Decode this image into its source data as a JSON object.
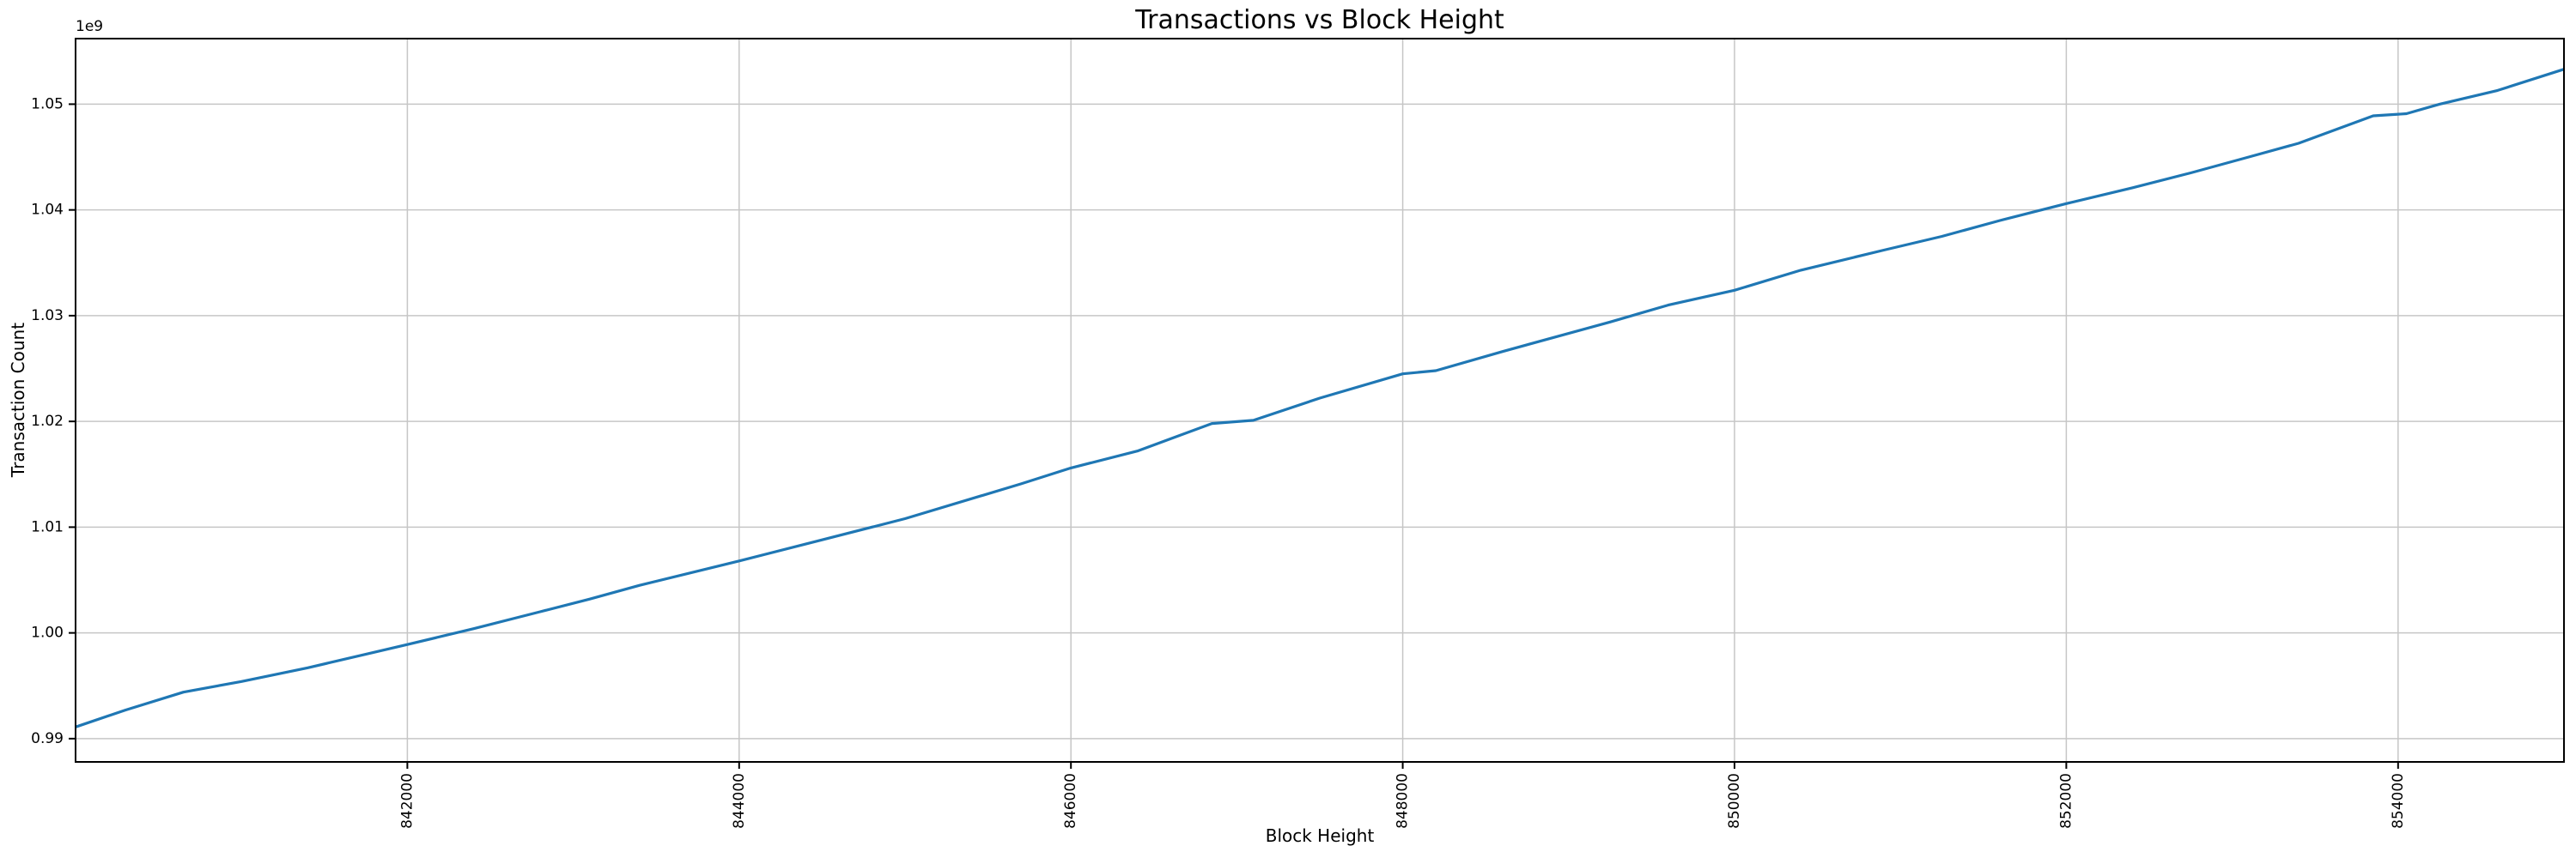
{
  "chart_data": {
    "type": "line",
    "title": "Transactions vs Block Height",
    "xlabel": "Block Height",
    "ylabel": "Transaction Count",
    "y_offset_label": "1e9",
    "grid": true,
    "legend": "none",
    "line_color": "#1f77b4",
    "grid_color": "#c6c6c6",
    "spine_color": "#000000",
    "background_color": "#ffffff",
    "xlim": [
      840000,
      855000
    ],
    "ylim": [
      987800000,
      1056200000
    ],
    "x_ticks": [
      842000,
      844000,
      846000,
      848000,
      850000,
      852000,
      854000
    ],
    "x_tick_labels": [
      "842000",
      "844000",
      "846000",
      "848000",
      "850000",
      "852000",
      "854000"
    ],
    "x_tick_label_rotation": 90,
    "y_ticks": [
      990000000,
      1000000000,
      1010000000,
      1020000000,
      1030000000,
      1040000000,
      1050000000
    ],
    "y_tick_labels": [
      "0.99",
      "1.00",
      "1.01",
      "1.02",
      "1.03",
      "1.04",
      "1.05"
    ],
    "series": [
      {
        "name": "Transaction Count",
        "data": [
          [
            840000,
            991100000
          ],
          [
            840300,
            992700000
          ],
          [
            840650,
            994400000
          ],
          [
            841000,
            995400000
          ],
          [
            841400,
            996700000
          ],
          [
            842000,
            998900000
          ],
          [
            842400,
            1000400000
          ],
          [
            842800,
            1002000000
          ],
          [
            843100,
            1003200000
          ],
          [
            843400,
            1004500000
          ],
          [
            844000,
            1006800000
          ],
          [
            844500,
            1008800000
          ],
          [
            845000,
            1010800000
          ],
          [
            845700,
            1014100000
          ],
          [
            846000,
            1015600000
          ],
          [
            846400,
            1017200000
          ],
          [
            846850,
            1019800000
          ],
          [
            847100,
            1020100000
          ],
          [
            847500,
            1022200000
          ],
          [
            848000,
            1024500000
          ],
          [
            848200,
            1024800000
          ],
          [
            848600,
            1026600000
          ],
          [
            849250,
            1029400000
          ],
          [
            849600,
            1031000000
          ],
          [
            850000,
            1032400000
          ],
          [
            850400,
            1034300000
          ],
          [
            850900,
            1036200000
          ],
          [
            851250,
            1037500000
          ],
          [
            851600,
            1039000000
          ],
          [
            852000,
            1040600000
          ],
          [
            852400,
            1042100000
          ],
          [
            852750,
            1043500000
          ],
          [
            853100,
            1045000000
          ],
          [
            853400,
            1046300000
          ],
          [
            853850,
            1048900000
          ],
          [
            854050,
            1049100000
          ],
          [
            854250,
            1050000000
          ],
          [
            854600,
            1051300000
          ],
          [
            855000,
            1053300000
          ]
        ]
      }
    ]
  }
}
